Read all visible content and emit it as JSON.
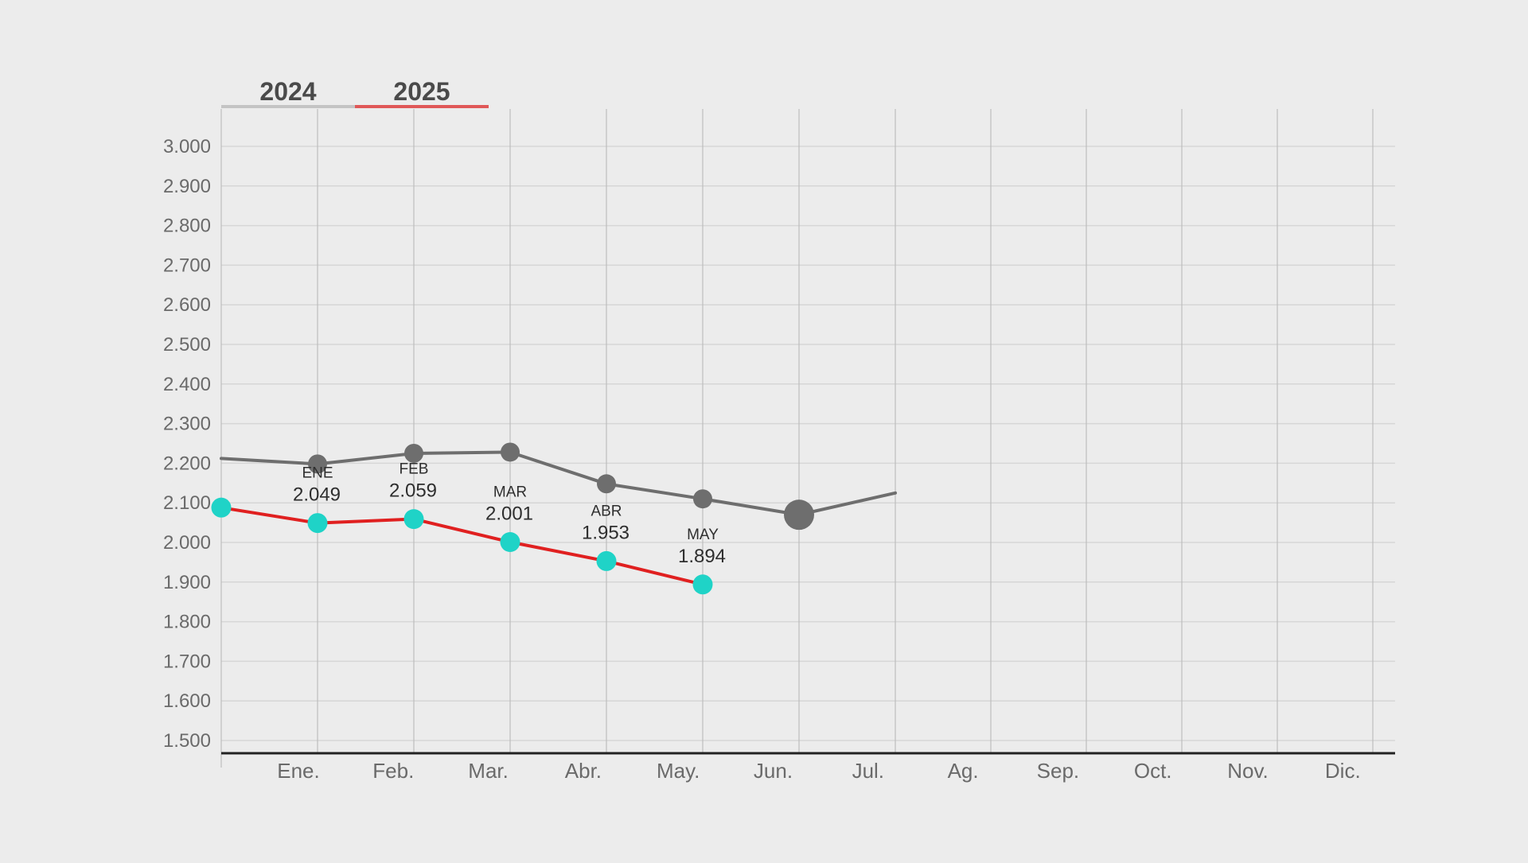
{
  "chart_data": {
    "type": "line",
    "categories": [
      "Ene.",
      "Feb.",
      "Mar.",
      "Abr.",
      "May.",
      "Jun.",
      "Jul.",
      "Ag.",
      "Sep.",
      "Oct.",
      "Nov.",
      "Dic."
    ],
    "y_ticks": [
      "3.000",
      "2.900",
      "2.800",
      "2.700",
      "2.600",
      "2.500",
      "2.400",
      "2.300",
      "2.200",
      "2.100",
      "2.000",
      "1.900",
      "1.800",
      "1.700",
      "1.600",
      "1.500"
    ],
    "ylim": [
      1470,
      3000
    ],
    "grid": true,
    "legend_position": "top-left",
    "series": [
      {
        "name": "2024",
        "color": "#6e6e6e",
        "x": [
          0,
          1,
          2,
          3,
          4,
          5,
          6,
          7
        ],
        "values": [
          2212,
          2198,
          2225,
          2228,
          2148,
          2110,
          2070,
          2125
        ],
        "highlight_point": 6
      },
      {
        "name": "2025",
        "color": "#e02020",
        "marker_color": "#1fd3c7",
        "x": [
          0,
          1,
          2,
          3,
          4,
          5
        ],
        "values": [
          2088,
          2049,
          2059,
          2001,
          1953,
          1894
        ],
        "labels": [
          {
            "index": 1,
            "month": "ENE",
            "value": "2.049"
          },
          {
            "index": 2,
            "month": "FEB",
            "value": "2.059"
          },
          {
            "index": 3,
            "month": "MAR",
            "value": "2.001"
          },
          {
            "index": 4,
            "month": "ABR",
            "value": "1.953"
          },
          {
            "index": 5,
            "month": "MAY",
            "value": "1.894"
          }
        ]
      }
    ]
  },
  "colors": {
    "background": "#ececec",
    "grid": "#d6d6d6",
    "vgrid": "#bdbdbd",
    "axis": "#222222",
    "legend_2024": "#c4c4c4",
    "legend_2025": "#e05858"
  }
}
